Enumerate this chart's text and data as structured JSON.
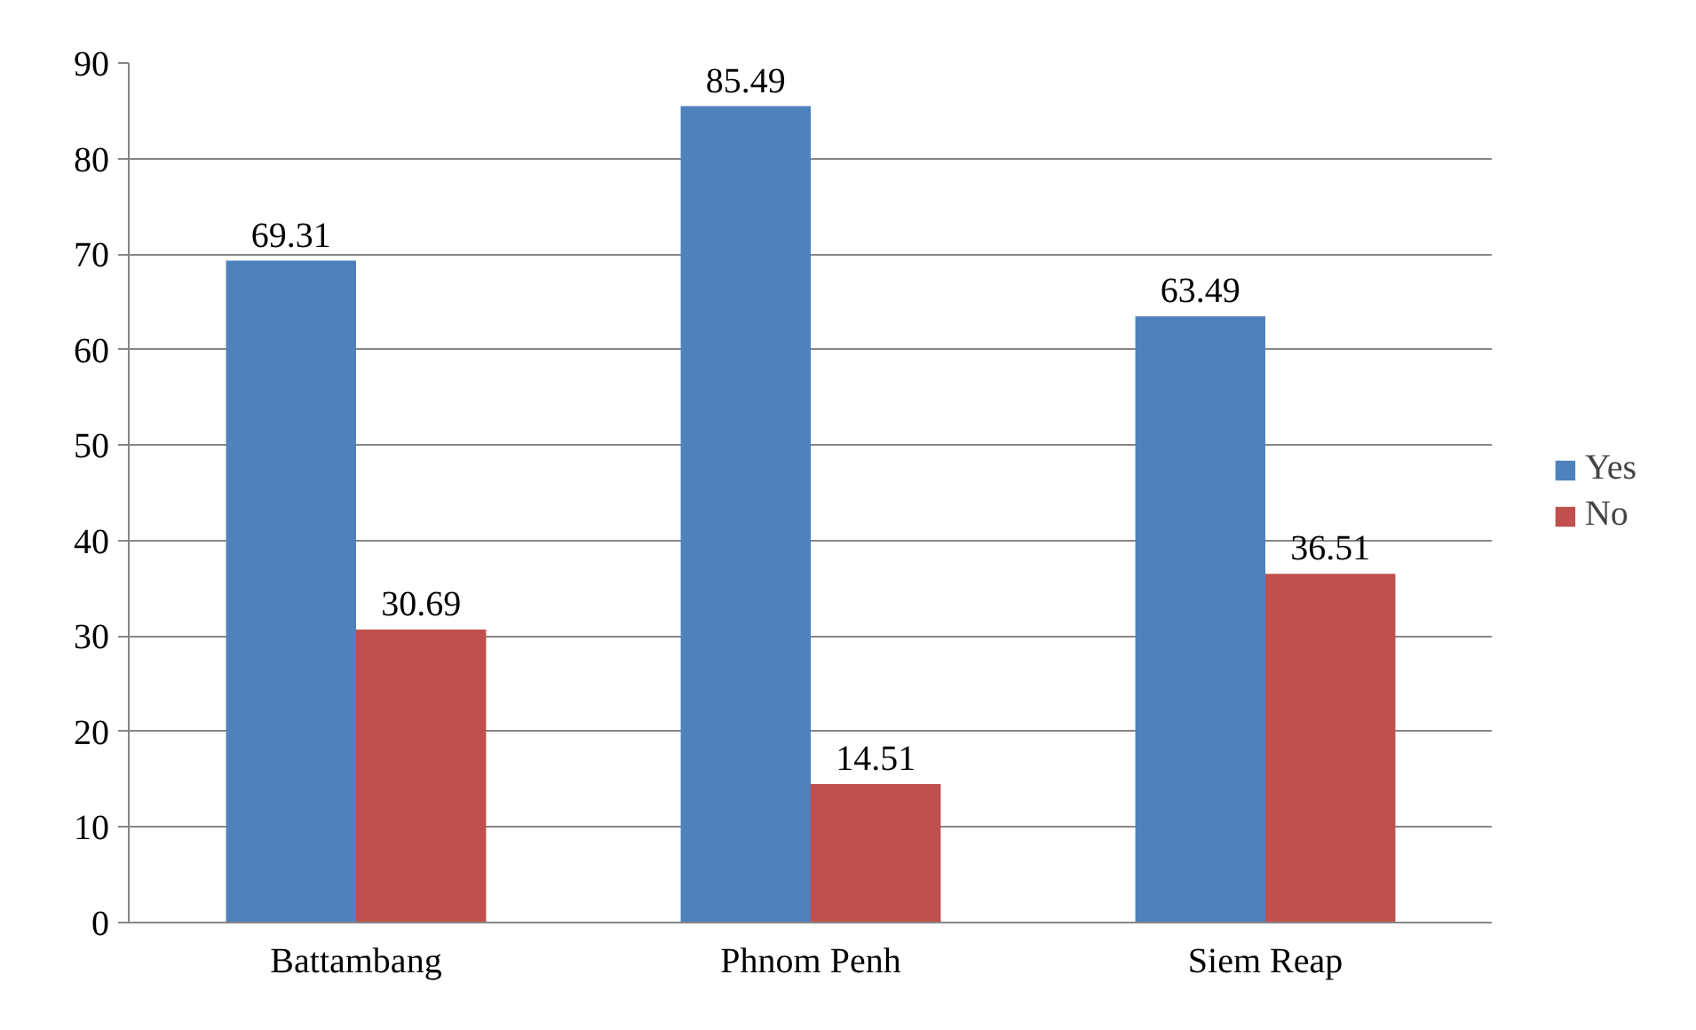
{
  "chart_data": {
    "type": "bar",
    "categories": [
      "Battambang",
      "Phnom Penh",
      "Siem Reap"
    ],
    "series": [
      {
        "name": "Yes",
        "color": "#4f81bd",
        "values": [
          69.31,
          85.49,
          63.49
        ]
      },
      {
        "name": "No",
        "color": "#c0504d",
        "values": [
          30.69,
          14.51,
          36.51
        ]
      }
    ],
    "ylim": [
      0,
      90
    ],
    "yticks": [
      0,
      10,
      20,
      30,
      40,
      50,
      60,
      70,
      80,
      90
    ],
    "grid": "y",
    "legend": "right",
    "data_labels": true
  }
}
